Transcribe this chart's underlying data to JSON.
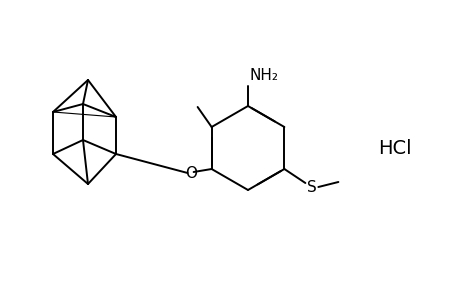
{
  "bg_color": "#ffffff",
  "line_color": "#000000",
  "line_width": 1.4,
  "font_size": 11,
  "hcl_text": "HCl",
  "nh2_text": "NH₂",
  "o_text": "O",
  "s_text": "S"
}
